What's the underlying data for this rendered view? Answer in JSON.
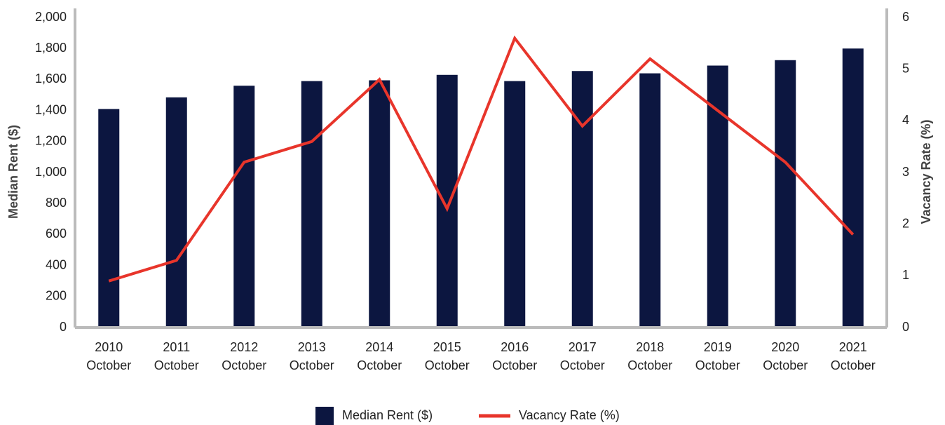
{
  "chart_data": {
    "type": "bar-line",
    "categories": [
      "2010 October",
      "2011 October",
      "2012 October",
      "2013 October",
      "2014 October",
      "2015 October",
      "2016 October",
      "2017 October",
      "2018 October",
      "2019 October",
      "2020 October",
      "2021 October"
    ],
    "series": [
      {
        "name": "Median Rent ($)",
        "type": "bar",
        "color": "#0c1640",
        "values": [
          1410,
          1485,
          1560,
          1590,
          1595,
          1630,
          1590,
          1655,
          1640,
          1690,
          1725,
          1800
        ]
      },
      {
        "name": "Vacancy Rate (%)",
        "type": "line",
        "axis": "y2",
        "color": "#e8352b",
        "values": [
          0.9,
          1.3,
          3.2,
          3.6,
          4.8,
          2.3,
          5.6,
          3.9,
          5.2,
          4.2,
          3.2,
          1.8
        ]
      }
    ],
    "ylabel": "Median Rent ($)",
    "y2label": "Vacancy Rate (%)",
    "ylim": [
      0,
      2000
    ],
    "yticks": [
      0,
      200,
      400,
      600,
      800,
      {
        "value": 1000,
        "label": "1,000"
      },
      {
        "value": 1200,
        "label": "1,200"
      },
      {
        "value": 1400,
        "label": "1,400"
      },
      {
        "value": 1600,
        "label": "1,600"
      },
      {
        "value": 1800,
        "label": "1,800"
      },
      {
        "value": 2000,
        "label": "2,000"
      }
    ],
    "y2lim": [
      0,
      6
    ],
    "y2ticks": [
      0,
      1,
      2,
      3,
      4,
      5,
      6
    ],
    "legend": "bottom"
  }
}
